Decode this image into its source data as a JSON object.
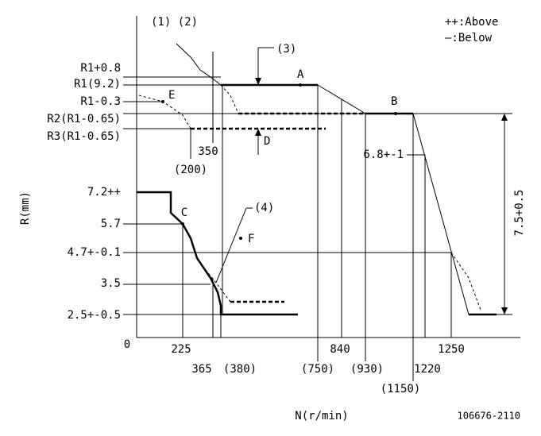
{
  "texts": [
    "(1) (2)",
    "++:Above",
    "—:Below",
    "(3)",
    "R1+0.8",
    "R1(9.2)",
    "R1-0.3",
    "R2(R1-0.65)",
    "R3(R1-0.65)",
    "A",
    "B",
    "E",
    "D",
    "350",
    "(200)",
    "6.8+-1",
    "7.5+0.5",
    "R(mm)",
    "7.2++",
    "5.7",
    "4.7+-0.1",
    "3.5",
    "2.5+-0.5",
    "0",
    "C",
    "(4)",
    "F",
    "225",
    "365",
    "(380)",
    "(750)",
    "840",
    "(930)",
    "1220",
    "(1150)",
    "1250",
    "N(r/min)",
    "106676-2110"
  ]
}
